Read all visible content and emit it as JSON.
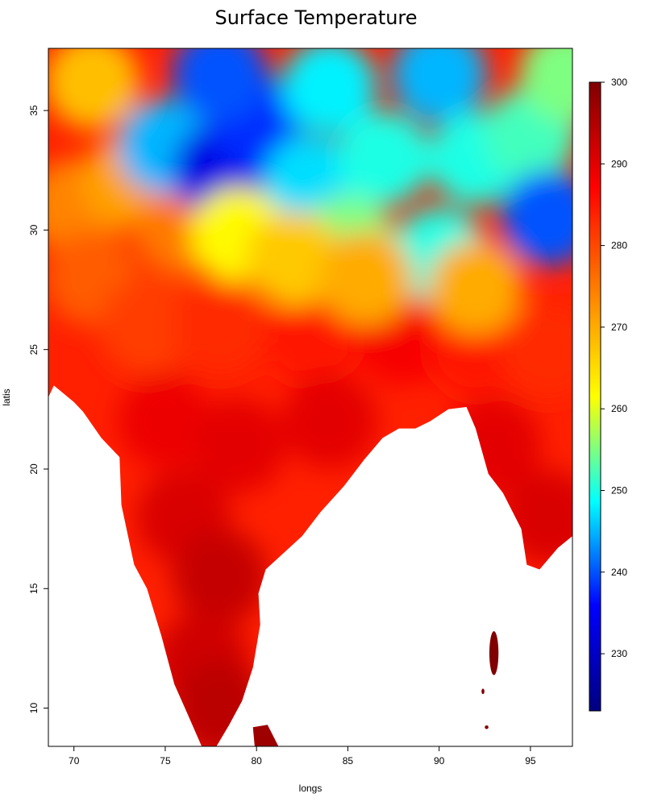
{
  "title": "Surface Temperature",
  "chart_data": {
    "type": "heatmap",
    "title": "Surface Temperature",
    "xlabel": "longs",
    "ylabel": "latis",
    "xlim": [
      68.6,
      97.3
    ],
    "ylim": [
      8.4,
      37.6
    ],
    "x_ticks": [
      "70",
      "75",
      "80",
      "85",
      "90",
      "95"
    ],
    "y_ticks": [
      "10",
      "15",
      "20",
      "25",
      "30",
      "35"
    ],
    "colorbar": {
      "range": [
        223,
        300
      ],
      "ticks": [
        "230",
        "240",
        "250",
        "260",
        "270",
        "280",
        "290",
        "300"
      ],
      "colors": [
        "#000080",
        "#0000ff",
        "#00ffff",
        "#ffff00",
        "#ff8000",
        "#ff0000",
        "#800000"
      ]
    },
    "no_data_color": "#ffffff",
    "land_outline": [
      [
        68.6,
        23.0
      ],
      [
        68.9,
        23.5
      ],
      [
        70.0,
        22.8
      ],
      [
        70.5,
        22.4
      ],
      [
        71.5,
        21.3
      ],
      [
        72.5,
        20.5
      ],
      [
        72.6,
        18.5
      ],
      [
        73.3,
        16.0
      ],
      [
        74.0,
        15.0
      ],
      [
        74.8,
        13.0
      ],
      [
        75.5,
        11.0
      ],
      [
        76.2,
        9.8
      ],
      [
        77.0,
        8.4
      ],
      [
        77.8,
        8.4
      ],
      [
        78.5,
        9.3
      ],
      [
        79.2,
        10.3
      ],
      [
        79.8,
        11.7
      ],
      [
        80.2,
        13.5
      ],
      [
        80.1,
        14.8
      ],
      [
        80.5,
        15.8
      ],
      [
        81.5,
        16.5
      ],
      [
        82.5,
        17.2
      ],
      [
        83.5,
        18.2
      ],
      [
        84.8,
        19.3
      ],
      [
        85.9,
        20.4
      ],
      [
        86.9,
        21.3
      ],
      [
        87.8,
        21.7
      ],
      [
        88.7,
        21.7
      ],
      [
        89.5,
        22.0
      ],
      [
        90.5,
        22.5
      ],
      [
        91.5,
        22.6
      ],
      [
        92.0,
        21.7
      ],
      [
        92.7,
        19.8
      ],
      [
        93.5,
        19.0
      ],
      [
        94.5,
        17.5
      ],
      [
        94.8,
        16.0
      ],
      [
        95.5,
        15.8
      ],
      [
        96.5,
        16.7
      ],
      [
        97.3,
        17.2
      ],
      [
        97.3,
        37.6
      ],
      [
        68.6,
        37.6
      ]
    ],
    "temperature_points": [
      {
        "lon": 71,
        "lat": 36.2,
        "t": 268
      },
      {
        "lon": 70,
        "lat": 31,
        "t": 274
      },
      {
        "lon": 73,
        "lat": 32,
        "t": 271
      },
      {
        "lon": 76,
        "lat": 30,
        "t": 275
      },
      {
        "lon": 71,
        "lat": 28,
        "t": 278
      },
      {
        "lon": 74,
        "lat": 26,
        "t": 281
      },
      {
        "lon": 78,
        "lat": 26,
        "t": 283
      },
      {
        "lon": 83,
        "lat": 25.5,
        "t": 285
      },
      {
        "lon": 88,
        "lat": 25.5,
        "t": 288
      },
      {
        "lon": 92,
        "lat": 25,
        "t": 285
      },
      {
        "lon": 96,
        "lat": 25,
        "t": 283
      },
      {
        "lon": 75,
        "lat": 22,
        "t": 289
      },
      {
        "lon": 79,
        "lat": 21,
        "t": 290
      },
      {
        "lon": 84,
        "lat": 22,
        "t": 290
      },
      {
        "lon": 93,
        "lat": 21,
        "t": 290
      },
      {
        "lon": 96,
        "lat": 18,
        "t": 291
      },
      {
        "lon": 76,
        "lat": 18,
        "t": 291
      },
      {
        "lon": 78,
        "lat": 15.5,
        "t": 293
      },
      {
        "lon": 77,
        "lat": 12,
        "t": 292
      },
      {
        "lon": 78,
        "lat": 10,
        "t": 294
      },
      {
        "lon": 75,
        "lat": 33.5,
        "t": 245
      },
      {
        "lon": 78,
        "lat": 32.5,
        "t": 233
      },
      {
        "lon": 80,
        "lat": 34.5,
        "t": 238
      },
      {
        "lon": 78,
        "lat": 36.5,
        "t": 240
      },
      {
        "lon": 84,
        "lat": 36,
        "t": 248
      },
      {
        "lon": 83,
        "lat": 32,
        "t": 247
      },
      {
        "lon": 87,
        "lat": 33,
        "t": 250
      },
      {
        "lon": 90,
        "lat": 36.5,
        "t": 245
      },
      {
        "lon": 92,
        "lat": 33,
        "t": 250
      },
      {
        "lon": 95,
        "lat": 34,
        "t": 252
      },
      {
        "lon": 97,
        "lat": 36.5,
        "t": 255
      },
      {
        "lon": 85,
        "lat": 29.5,
        "t": 255
      },
      {
        "lon": 90,
        "lat": 29,
        "t": 250
      },
      {
        "lon": 96,
        "lat": 30.5,
        "t": 240
      },
      {
        "lon": 79,
        "lat": 29.8,
        "t": 262
      },
      {
        "lon": 82,
        "lat": 28.8,
        "t": 267
      },
      {
        "lon": 86,
        "lat": 28.0,
        "t": 270
      },
      {
        "lon": 92,
        "lat": 27.6,
        "t": 270
      }
    ],
    "islands": [
      {
        "lon": 93.0,
        "lat": 12.3,
        "rx": 0.25,
        "ry": 1.2,
        "t": 300
      },
      {
        "lon": 92.6,
        "lat": 9.2,
        "rx": 0.1,
        "ry": 0.1,
        "t": 300
      },
      {
        "lon": 92.4,
        "lat": 10.7,
        "rx": 0.08,
        "ry": 0.15,
        "t": 300
      }
    ],
    "sri_lanka": [
      [
        79.8,
        9.2
      ],
      [
        80.6,
        9.3
      ],
      [
        81.2,
        8.4
      ],
      [
        79.9,
        8.4
      ]
    ]
  }
}
